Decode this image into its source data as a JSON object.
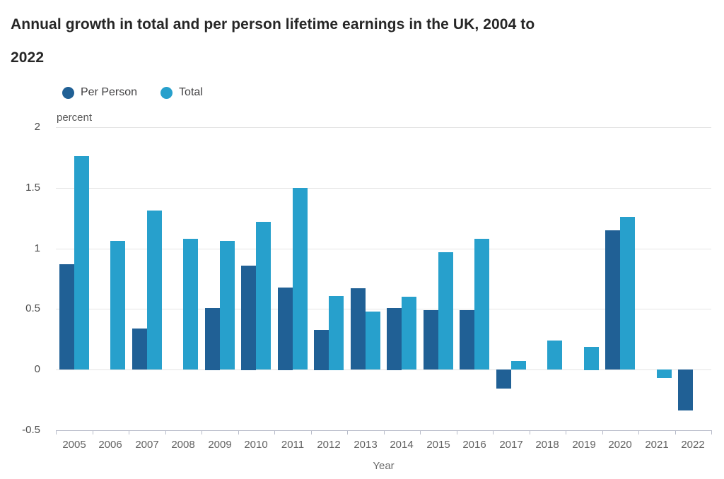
{
  "title": {
    "line1": "Annual growth in total and per person lifetime earnings in the UK, 2004 to",
    "line2": "2022"
  },
  "chart_data": {
    "type": "bar",
    "title": "Annual growth in total and per person lifetime earnings in the UK, 2004 to 2022",
    "unit_label": "percent",
    "xlabel": "Year",
    "ylabel": "percent",
    "categories": [
      "2005",
      "2006",
      "2007",
      "2008",
      "2009",
      "2010",
      "2011",
      "2012",
      "2013",
      "2014",
      "2015",
      "2016",
      "2017",
      "2018",
      "2019",
      "2020",
      "2021",
      "2022"
    ],
    "series": [
      {
        "name": "Per Person",
        "color": "#206095",
        "values": [
          0.87,
          0,
          0.34,
          0,
          0.51,
          0.86,
          0.68,
          0.33,
          0.67,
          0.51,
          0.49,
          0.49,
          -0.16,
          0,
          0,
          1.15,
          0,
          -0.34
        ]
      },
      {
        "name": "Total",
        "color": "#27A0CC",
        "values": [
          1.76,
          1.06,
          1.31,
          1.08,
          1.06,
          1.22,
          1.5,
          0.61,
          0.48,
          0.6,
          0.97,
          1.08,
          0.07,
          0.24,
          0.19,
          1.26,
          -0.07,
          0
        ]
      }
    ],
    "yticks": [
      2,
      1.5,
      1,
      0.5,
      0,
      -0.5
    ],
    "ylim": [
      -0.5,
      2
    ],
    "grid": true,
    "legend_position": "top-left"
  }
}
